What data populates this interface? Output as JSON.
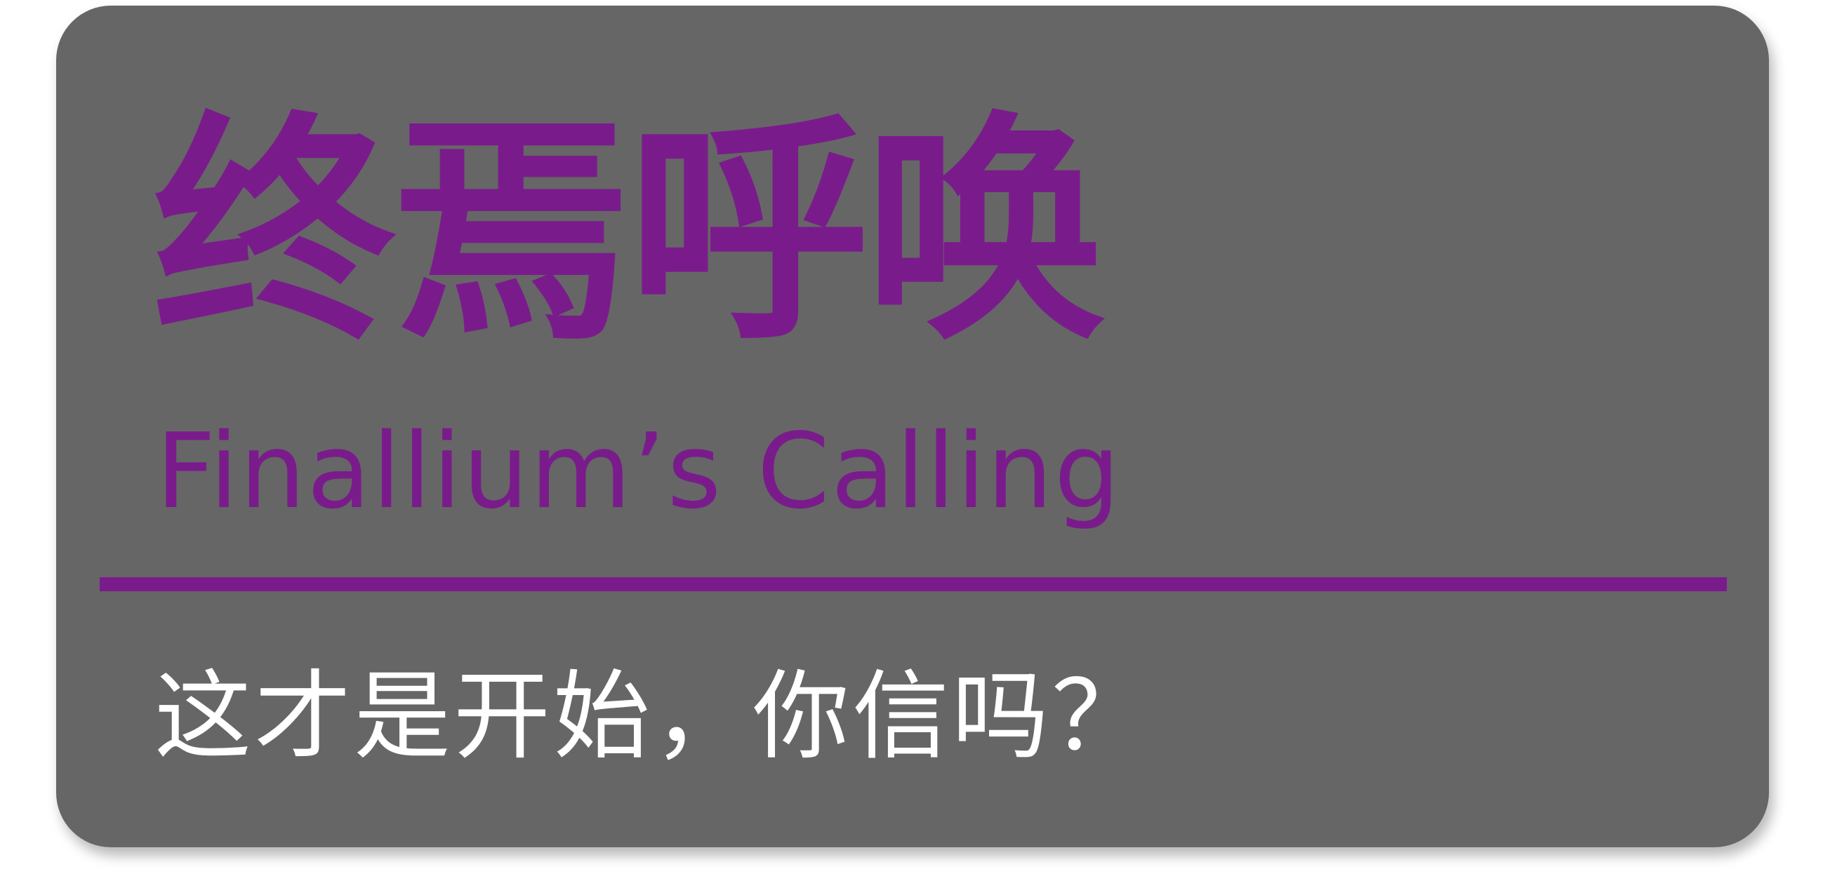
{
  "title_cn": "终焉呼唤",
  "title_en": "Finallium’s Calling",
  "subtitle": "这才是开始，你信吗？",
  "colors": {
    "card_background": "#666666",
    "accent": "#7A1B8C",
    "subtitle_text": "#FFFFFF",
    "page_background": "#FFFFFF"
  }
}
